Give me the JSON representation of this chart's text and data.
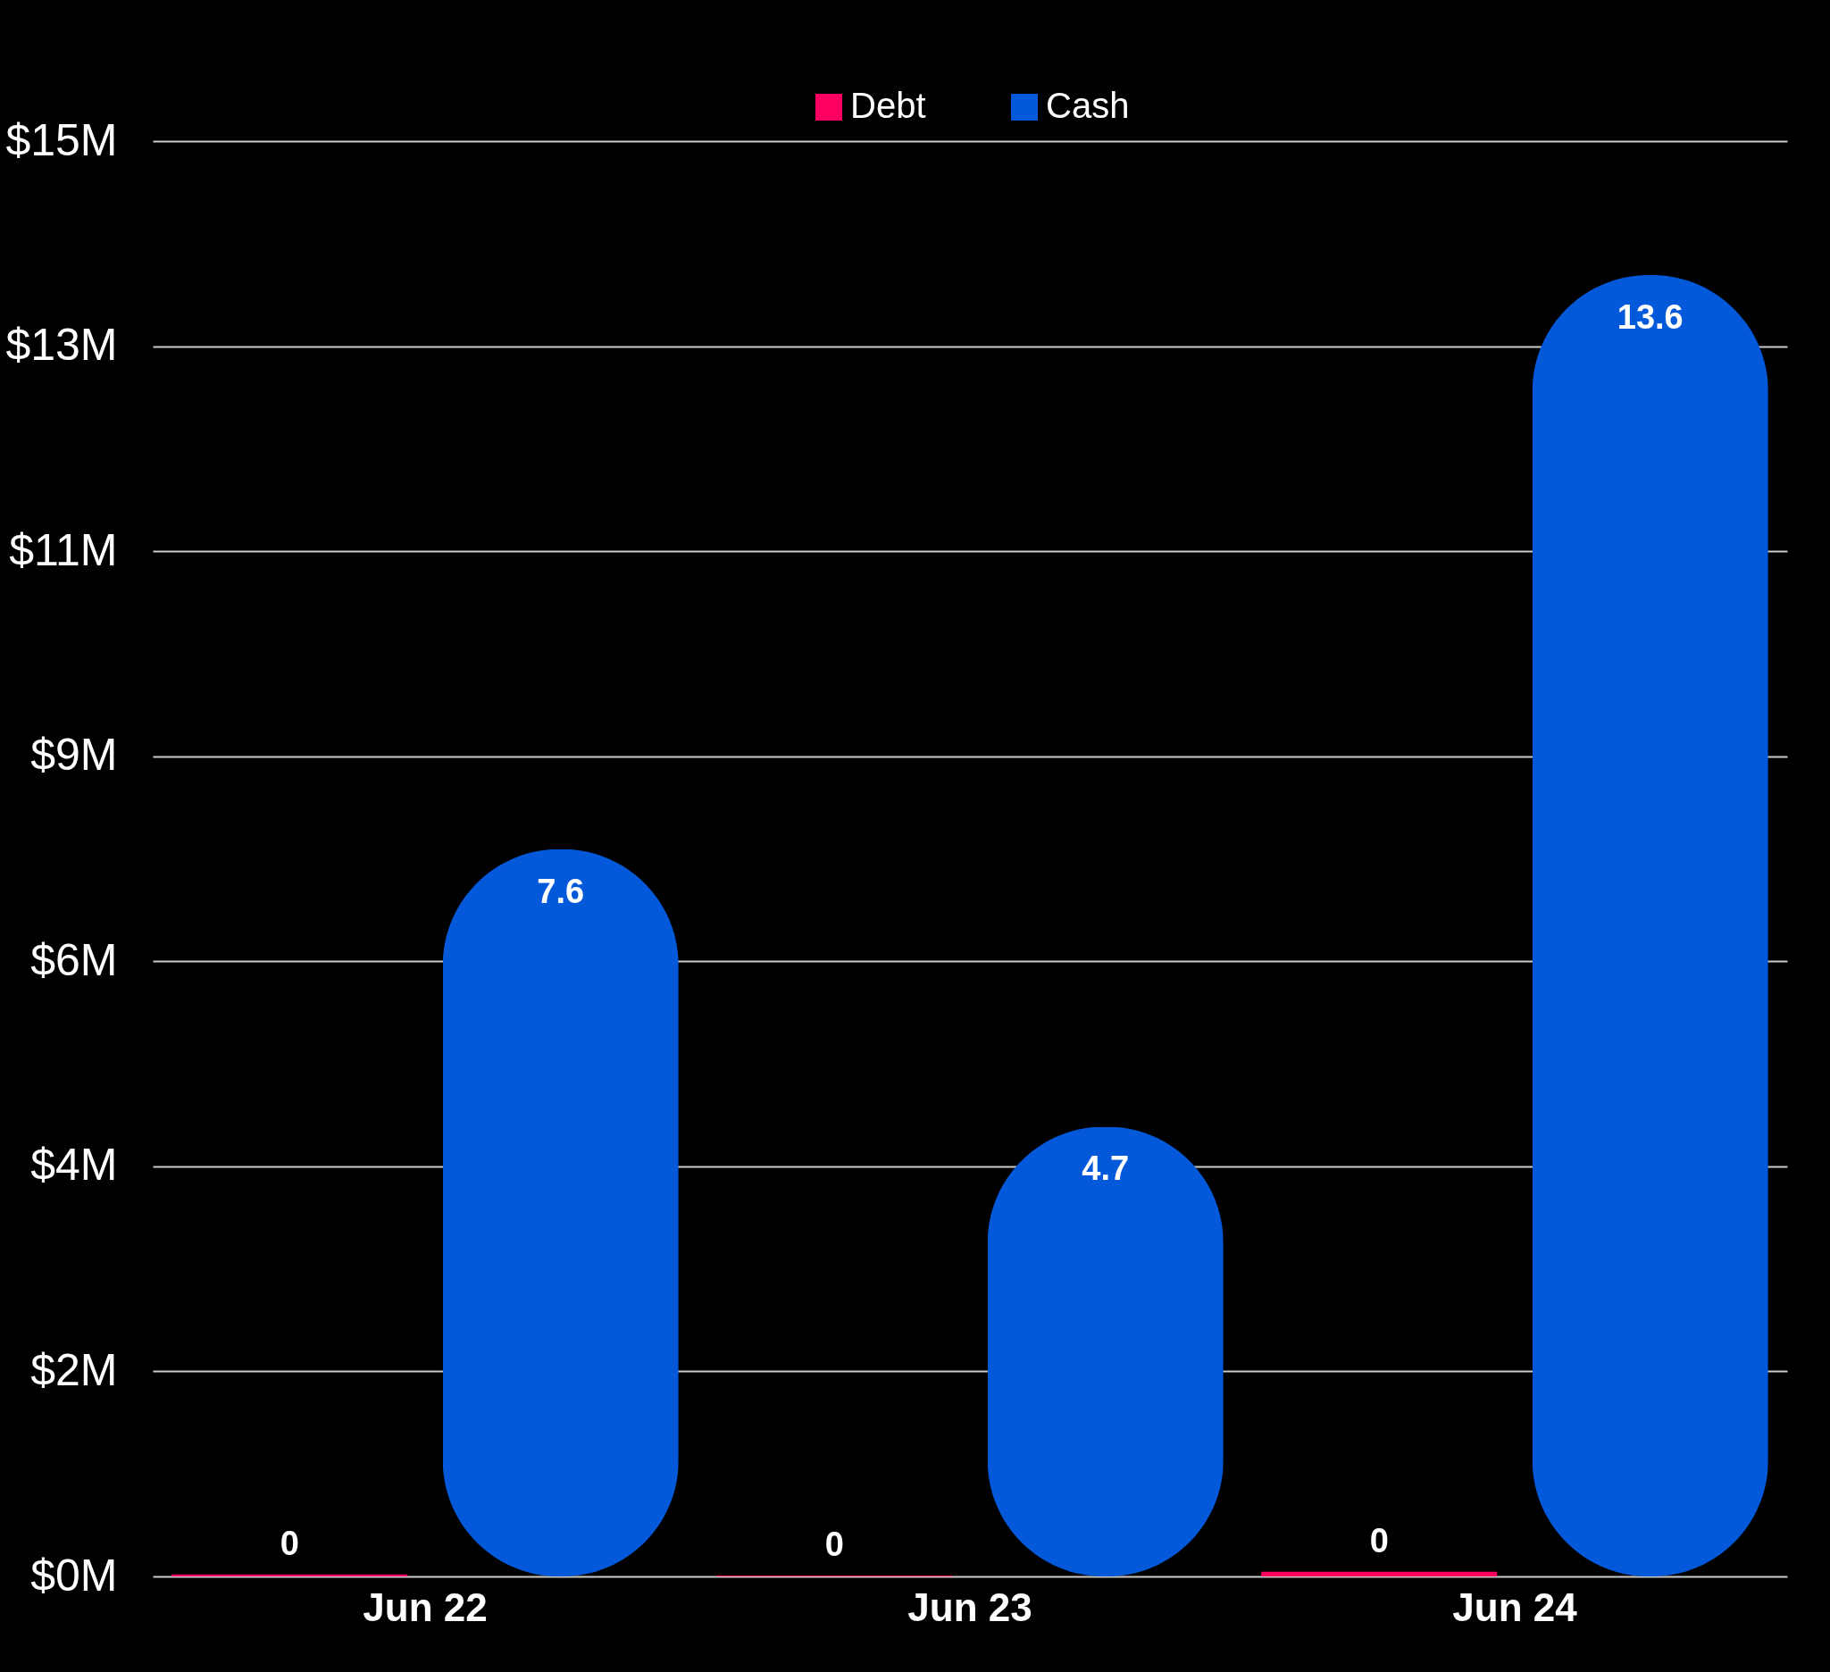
{
  "chart_data": {
    "type": "bar",
    "categories": [
      "Jun 22",
      "Jun 23",
      "Jun 24"
    ],
    "series": [
      {
        "name": "Debt",
        "color": "#ff0060",
        "values": [
          0.02,
          0.01,
          0.05
        ],
        "value_labels": [
          "0",
          "0",
          "0"
        ]
      },
      {
        "name": "Cash",
        "color": "#0459da",
        "values": [
          7.6,
          4.7,
          13.6
        ],
        "value_labels": [
          "7.6",
          "4.7",
          "13.6"
        ]
      }
    ],
    "ylim": [
      0,
      15
    ],
    "yticks": [
      {
        "value": 0,
        "label": "$0M"
      },
      {
        "value": 2.143,
        "label": "$2M"
      },
      {
        "value": 4.286,
        "label": "$4M"
      },
      {
        "value": 6.429,
        "label": "$6M"
      },
      {
        "value": 8.571,
        "label": "$9M"
      },
      {
        "value": 10.714,
        "label": "$11M"
      },
      {
        "value": 12.857,
        "label": "$13M"
      },
      {
        "value": 15,
        "label": "$15M"
      }
    ],
    "grid": "y",
    "legend": "top"
  }
}
